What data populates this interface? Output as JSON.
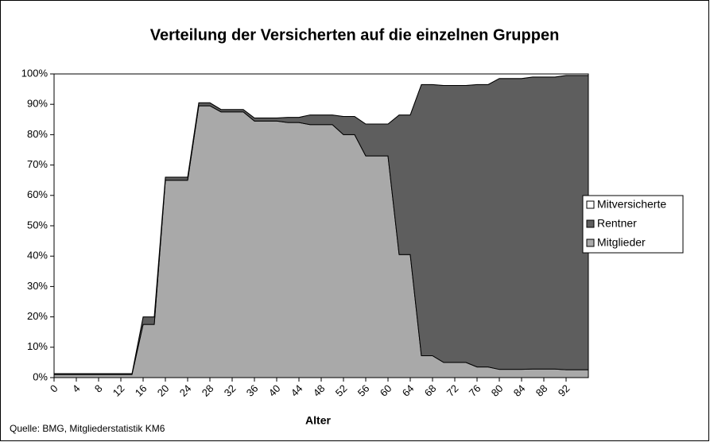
{
  "chart_data": {
    "type": "stacked_area",
    "title": "Verteilung der Versicherten auf die einzelnen Gruppen",
    "x_label": "Alter",
    "source": "Quelle: BMG, Mitgliederstatistik KM6",
    "categories": [
      "0",
      null,
      "4",
      null,
      "8",
      null,
      "12",
      null,
      "16",
      null,
      "20",
      null,
      "24",
      null,
      "28",
      null,
      "32",
      null,
      "36",
      null,
      "40",
      null,
      "44",
      null,
      "48",
      null,
      "52",
      null,
      "56",
      null,
      "60",
      null,
      "64",
      null,
      "68",
      null,
      "72",
      null,
      "76",
      null,
      "80",
      null,
      "84",
      null,
      "88",
      null,
      "92",
      null,
      null
    ],
    "series": [
      {
        "name": "Mitglieder",
        "color": "#a9a9a9",
        "values": [
          1,
          1,
          1,
          1,
          1,
          1,
          1,
          1,
          17.5,
          17.5,
          65,
          65,
          65,
          89.5,
          89.5,
          87.5,
          87.5,
          87.5,
          84.5,
          84.5,
          84.5,
          84,
          84,
          83.3,
          83.3,
          83.3,
          80,
          80,
          73,
          73,
          73,
          40.5,
          40.5,
          7.2,
          7.2,
          5,
          5,
          5,
          3.5,
          3.5,
          2.7,
          2.7,
          2.7,
          2.8,
          2.8,
          2.8,
          2.6,
          2.6,
          2.6
        ]
      },
      {
        "name": "Rentner",
        "color": "#5e5e5e",
        "values": [
          0.3,
          0.3,
          0.3,
          0.3,
          0.3,
          0.3,
          0.3,
          0.3,
          2.5,
          2.5,
          1,
          1,
          1,
          1,
          1,
          0.8,
          0.8,
          0.8,
          1,
          1,
          1,
          1.7,
          1.7,
          3.2,
          3.2,
          3.2,
          6,
          6,
          10.5,
          10.5,
          10.5,
          46,
          46,
          89.3,
          89.3,
          91.2,
          91.2,
          91.2,
          93,
          93,
          95.8,
          95.8,
          95.8,
          96.2,
          96.2,
          96.2,
          96.9,
          96.9,
          96.9
        ]
      },
      {
        "name": "Mitversicherte",
        "color": "#ffffff",
        "values": [
          98.7,
          98.7,
          98.7,
          98.7,
          98.7,
          98.7,
          98.7,
          98.7,
          80,
          80,
          34,
          34,
          34,
          9.5,
          9.5,
          11.7,
          11.7,
          11.7,
          14.5,
          14.5,
          14.5,
          14.3,
          14.3,
          13.5,
          13.5,
          13.5,
          14,
          14,
          16.5,
          16.5,
          16.5,
          13.5,
          13.5,
          3.5,
          3.5,
          3.8,
          3.8,
          3.8,
          3.5,
          3.5,
          1.5,
          1.5,
          1.5,
          1,
          1,
          1,
          0.5,
          0.5,
          0.5
        ]
      }
    ],
    "ylim": [
      0,
      100
    ],
    "yticks": [
      {
        "value": 0,
        "label": "0%"
      },
      {
        "value": 10,
        "label": "10%"
      },
      {
        "value": 20,
        "label": "20%"
      },
      {
        "value": 30,
        "label": "30%"
      },
      {
        "value": 40,
        "label": "40%"
      },
      {
        "value": 50,
        "label": "50%"
      },
      {
        "value": 60,
        "label": "60%"
      },
      {
        "value": 70,
        "label": "70%"
      },
      {
        "value": 80,
        "label": "80%"
      },
      {
        "value": 90,
        "label": "90%"
      },
      {
        "value": 100,
        "label": "100%"
      }
    ],
    "legend": "right"
  }
}
